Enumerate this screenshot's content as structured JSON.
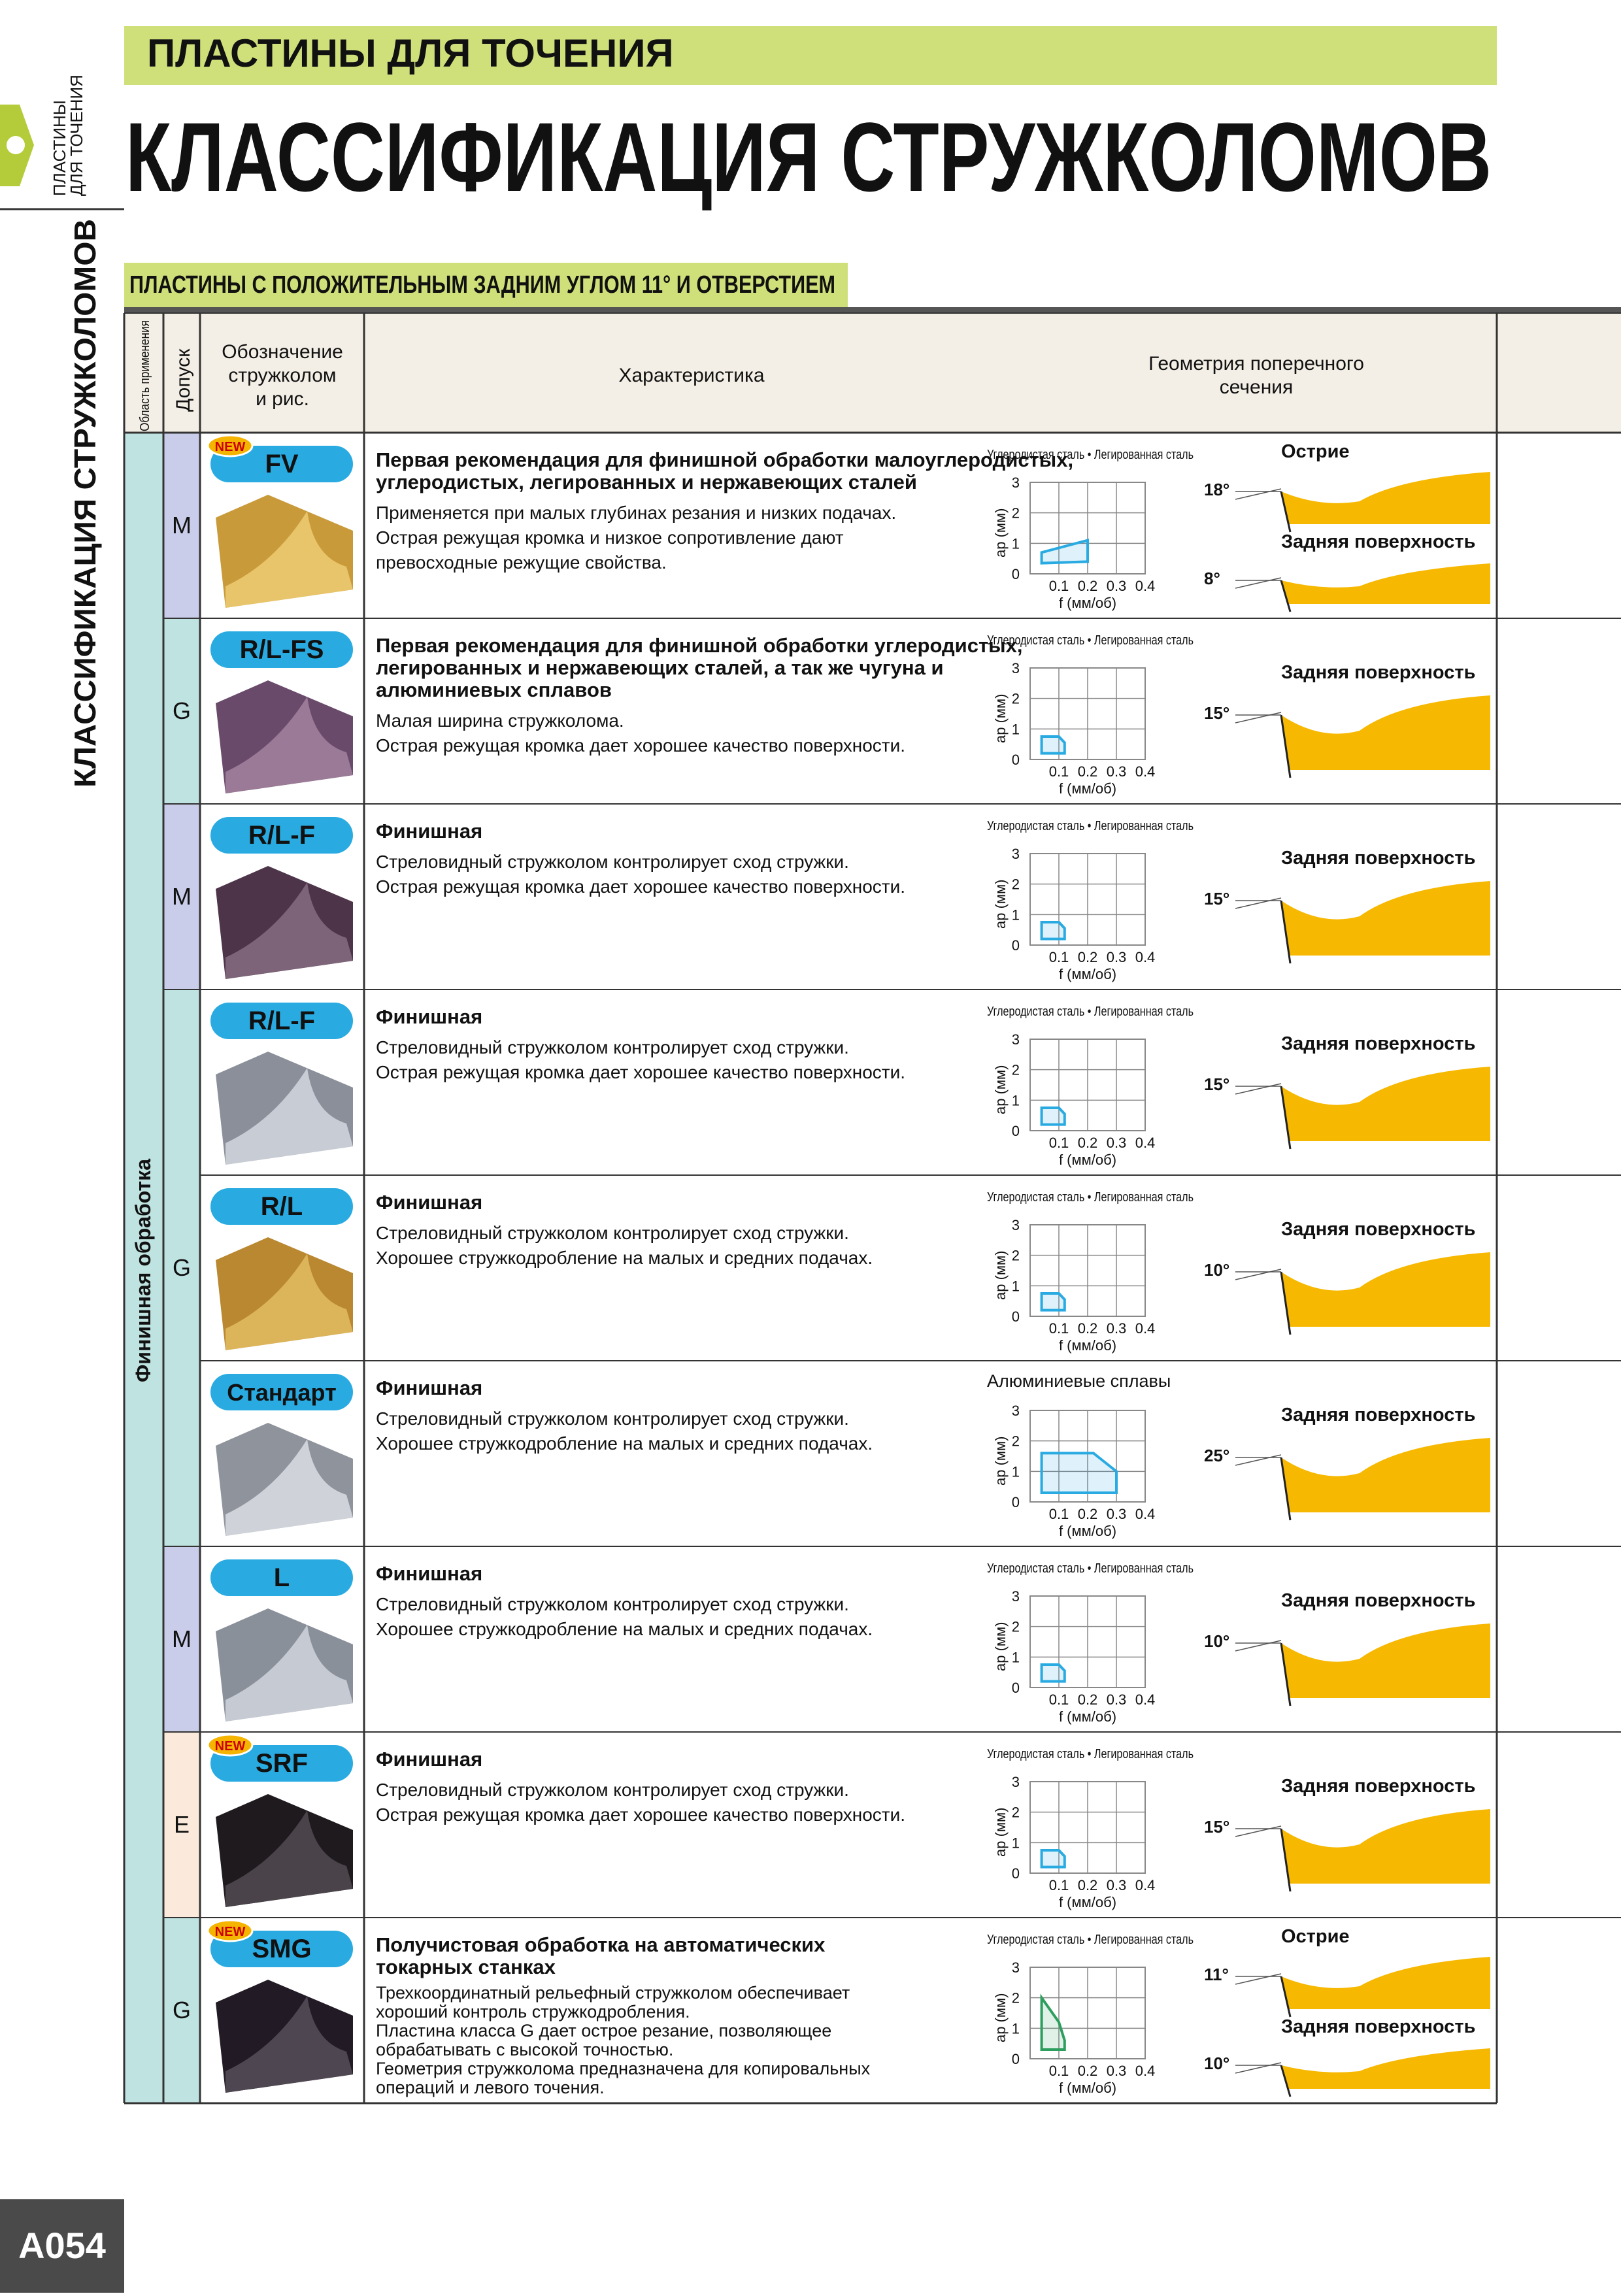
{
  "header": {
    "section": "ПЛАСТИНЫ ДЛЯ ТОЧЕНИЯ",
    "title": "КЛАССИФИКАЦИЯ СТРУЖКОЛОМОВ",
    "side_tab": [
      "ПЛАСТИНЫ",
      "ДЛЯ ТОЧЕНИЯ"
    ],
    "side_title": "КЛАССИФИКАЦИЯ СТРУЖКОЛОМОВ"
  },
  "subheader": "ПЛАСТИНЫ С ПОЛОЖИТЕЛЬНЫМ ЗАДНИМ УГЛОМ 11° И ОТВЕРСТИЕМ",
  "table": {
    "columns": {
      "application": "Область применения",
      "tolerance": "Допуск",
      "designation": [
        "Обозначение",
        "стружколом",
        "и рис."
      ],
      "feature": "Характеристика",
      "geometry": [
        "Геометрия поперечного",
        "сечения"
      ]
    },
    "application": "Финишная обработка",
    "chart_axes": {
      "y_label": "ap (мм)",
      "x_label": "f (мм/об)",
      "ylim": [
        0,
        3
      ],
      "xlim": [
        0,
        0.4
      ],
      "yticks": [
        0,
        1,
        2,
        3
      ],
      "xticks": [
        0.1,
        0.2,
        0.3,
        0.4
      ]
    },
    "rows": [
      {
        "code": "FV",
        "badge": "NEW",
        "tolerance": "M",
        "title": [
          "Первая рекомендация для финишной обработки малоуглеродистых,",
          "углеродистых, легированных и нержавеющих сталей"
        ],
        "desc": [
          "Применяется при малых глубинах резания и низких подачах.",
          "Острая режущая кромка и низкое сопротивление дают",
          "превосходные режущие свойства."
        ],
        "chart_label": "Углеродистая сталь • Легированная сталь",
        "region_color": "#29abe2",
        "region_f": [
          0.04,
          0.04,
          0.2,
          0.2
        ],
        "region_ap": [
          0.35,
          0.7,
          1.1,
          0.4
        ],
        "sections": [
          {
            "label": "Острие",
            "angle": "18°"
          },
          {
            "label": "Задняя поверхность",
            "angle": "8°"
          }
        ]
      },
      {
        "code": "R/L-FS",
        "tolerance": "G",
        "title": [
          "Первая рекомендация для финишной обработки углеродистых,",
          "легированных и нержавеющих сталей, а так же чугуна и",
          "алюминиевых сплавов"
        ],
        "desc": [
          "Малая ширина стружколома.",
          "Острая режущая кромка дает хорошее качество поверхности."
        ],
        "chart_label": "Углеродистая сталь • Легированная сталь",
        "region_color": "#29abe2",
        "region_f": [
          0.04,
          0.04,
          0.1,
          0.12,
          0.12
        ],
        "region_ap": [
          0.2,
          0.75,
          0.75,
          0.55,
          0.2
        ],
        "sections": [
          {
            "label": "Задняя поверхность",
            "angle": "15°"
          }
        ]
      },
      {
        "code": "R/L-F",
        "tolerance": "M",
        "title": [
          "Финишная"
        ],
        "desc": [
          "Стреловидный стружколом контролирует сход стружки.",
          "Острая режущая кромка дает хорошее качество поверхности."
        ],
        "chart_label": "Углеродистая сталь • Легированная сталь",
        "region_color": "#29abe2",
        "region_f": [
          0.04,
          0.04,
          0.1,
          0.12,
          0.12
        ],
        "region_ap": [
          0.2,
          0.75,
          0.75,
          0.55,
          0.2
        ],
        "sections": [
          {
            "label": "Задняя поверхность",
            "angle": "15°"
          }
        ]
      },
      {
        "code": "R/L-F",
        "tolerance": "G",
        "title": [
          "Финишная"
        ],
        "desc": [
          "Стреловидный стружколом контролирует сход стружки.",
          "Острая режущая кромка дает хорошее качество поверхности."
        ],
        "chart_label": "Углеродистая сталь • Легированная сталь",
        "region_color": "#29abe2",
        "region_f": [
          0.04,
          0.04,
          0.1,
          0.12,
          0.12
        ],
        "region_ap": [
          0.2,
          0.75,
          0.75,
          0.55,
          0.2
        ],
        "sections": [
          {
            "label": "Задняя поверхность",
            "angle": "15°"
          }
        ]
      },
      {
        "code": "R/L",
        "tolerance": null,
        "title": [
          "Финишная"
        ],
        "desc": [
          "Стреловидный стружколом контролирует сход стружки.",
          "Хорошее стружкодробление на малых и средних подачах."
        ],
        "chart_label": "Углеродистая сталь • Легированная сталь",
        "region_color": "#29abe2",
        "region_f": [
          0.04,
          0.04,
          0.1,
          0.12,
          0.12
        ],
        "region_ap": [
          0.2,
          0.75,
          0.75,
          0.55,
          0.2
        ],
        "sections": [
          {
            "label": "Задняя поверхность",
            "angle": "10°"
          }
        ]
      },
      {
        "code": "Стандарт",
        "tolerance": null,
        "title": [
          "Финишная"
        ],
        "desc": [
          "Стреловидный стружколом контролирует сход стружки.",
          "Хорошее стружкодробление на малых и средних подачах."
        ],
        "chart_label": "Алюминиевые сплавы",
        "region_color": "#29abe2",
        "region_f": [
          0.04,
          0.04,
          0.22,
          0.3,
          0.3
        ],
        "region_ap": [
          0.3,
          1.6,
          1.6,
          1.0,
          0.3
        ],
        "sections": [
          {
            "label": "Задняя поверхность",
            "angle": "25°"
          }
        ]
      },
      {
        "code": "L",
        "tolerance": "M",
        "title": [
          "Финишная"
        ],
        "desc": [
          "Стреловидный стружколом контролирует сход стружки.",
          "Хорошее стружкодробление на малых и средних подачах."
        ],
        "chart_label": "Углеродистая сталь • Легированная сталь",
        "region_color": "#29abe2",
        "region_f": [
          0.04,
          0.04,
          0.1,
          0.12,
          0.12
        ],
        "region_ap": [
          0.2,
          0.75,
          0.75,
          0.55,
          0.2
        ],
        "sections": [
          {
            "label": "Задняя поверхность",
            "angle": "10°"
          }
        ]
      },
      {
        "code": "SRF",
        "badge": "NEW",
        "tolerance": "E",
        "title": [
          "Финишная"
        ],
        "desc": [
          "Стреловидный стружколом контролирует сход стружки.",
          "Острая режущая кромка дает хорошее качество поверхности."
        ],
        "chart_label": "Углеродистая сталь • Легированная сталь",
        "region_color": "#29abe2",
        "region_f": [
          0.04,
          0.04,
          0.1,
          0.12,
          0.12
        ],
        "region_ap": [
          0.2,
          0.75,
          0.75,
          0.55,
          0.2
        ],
        "sections": [
          {
            "label": "Задняя поверхность",
            "angle": "15°"
          }
        ]
      },
      {
        "code": "SMG",
        "badge": "NEW",
        "tolerance": "G",
        "title": [
          "Получистовая обработка на автоматических",
          "токарных станках"
        ],
        "desc": [
          "Трехкоординатный рельефный стружколом обеспечивает",
          "хороший контроль стружкодробления.",
          "Пластина класса G дает острое резание, позволяющее",
          "обрабатывать с высокой точностью.",
          "Геометрия стружколома предназначена для копировальных",
          "операций и левого точения."
        ],
        "chart_label": "Углеродистая сталь • Легированная сталь",
        "region_color": "#2e9e5e",
        "region_f": [
          0.04,
          0.04,
          0.1,
          0.12,
          0.12
        ],
        "region_ap": [
          0.3,
          2.0,
          1.2,
          0.6,
          0.3
        ],
        "sections": [
          {
            "label": "Острие",
            "angle": "11°"
          },
          {
            "label": "Задняя поверхность",
            "angle": "10°"
          }
        ]
      }
    ]
  },
  "page_number": "A054"
}
